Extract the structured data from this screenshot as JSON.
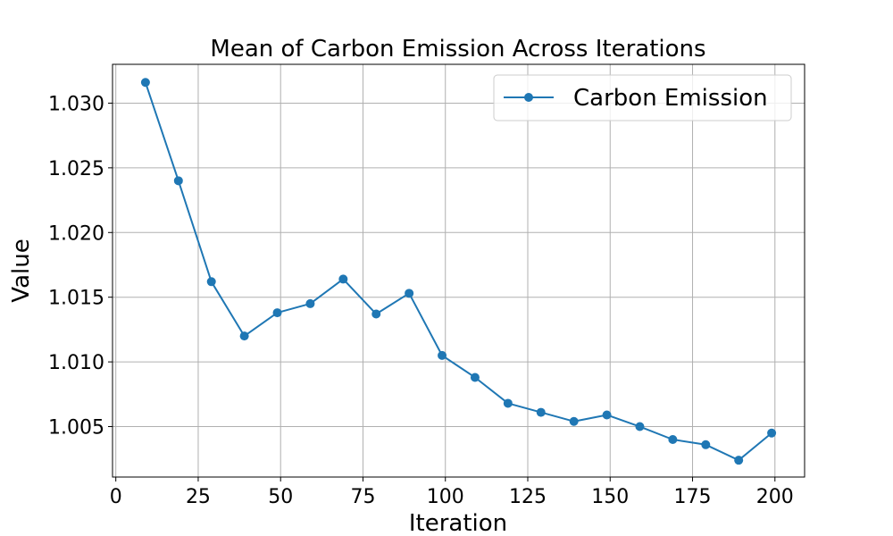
{
  "chart_data": {
    "type": "line",
    "title": "Mean of Carbon Emission Across Iterations",
    "xlabel": "Iteration",
    "ylabel": "Value",
    "xlim": [
      -1,
      209
    ],
    "ylim": [
      1.0011,
      1.033
    ],
    "xticks": [
      0,
      25,
      50,
      75,
      100,
      125,
      150,
      175,
      200
    ],
    "yticks": [
      1.005,
      1.01,
      1.015,
      1.02,
      1.025,
      1.03
    ],
    "xtick_labels": [
      "0",
      "25",
      "50",
      "75",
      "100",
      "125",
      "150",
      "175",
      "200"
    ],
    "ytick_labels": [
      "1.005",
      "1.010",
      "1.015",
      "1.020",
      "1.025",
      "1.030"
    ],
    "grid": true,
    "legend_position": "top-right",
    "color": "#1f77b4",
    "series": [
      {
        "name": "Carbon Emission",
        "x": [
          9,
          19,
          29,
          39,
          49,
          59,
          69,
          79,
          89,
          99,
          109,
          119,
          129,
          139,
          149,
          159,
          169,
          179,
          189,
          199
        ],
        "values": [
          1.0316,
          1.024,
          1.0162,
          1.012,
          1.0138,
          1.0145,
          1.0164,
          1.0137,
          1.0153,
          1.0105,
          1.0088,
          1.0068,
          1.0061,
          1.0054,
          1.0059,
          1.005,
          1.004,
          1.0036,
          1.0024,
          1.0045
        ]
      }
    ]
  }
}
